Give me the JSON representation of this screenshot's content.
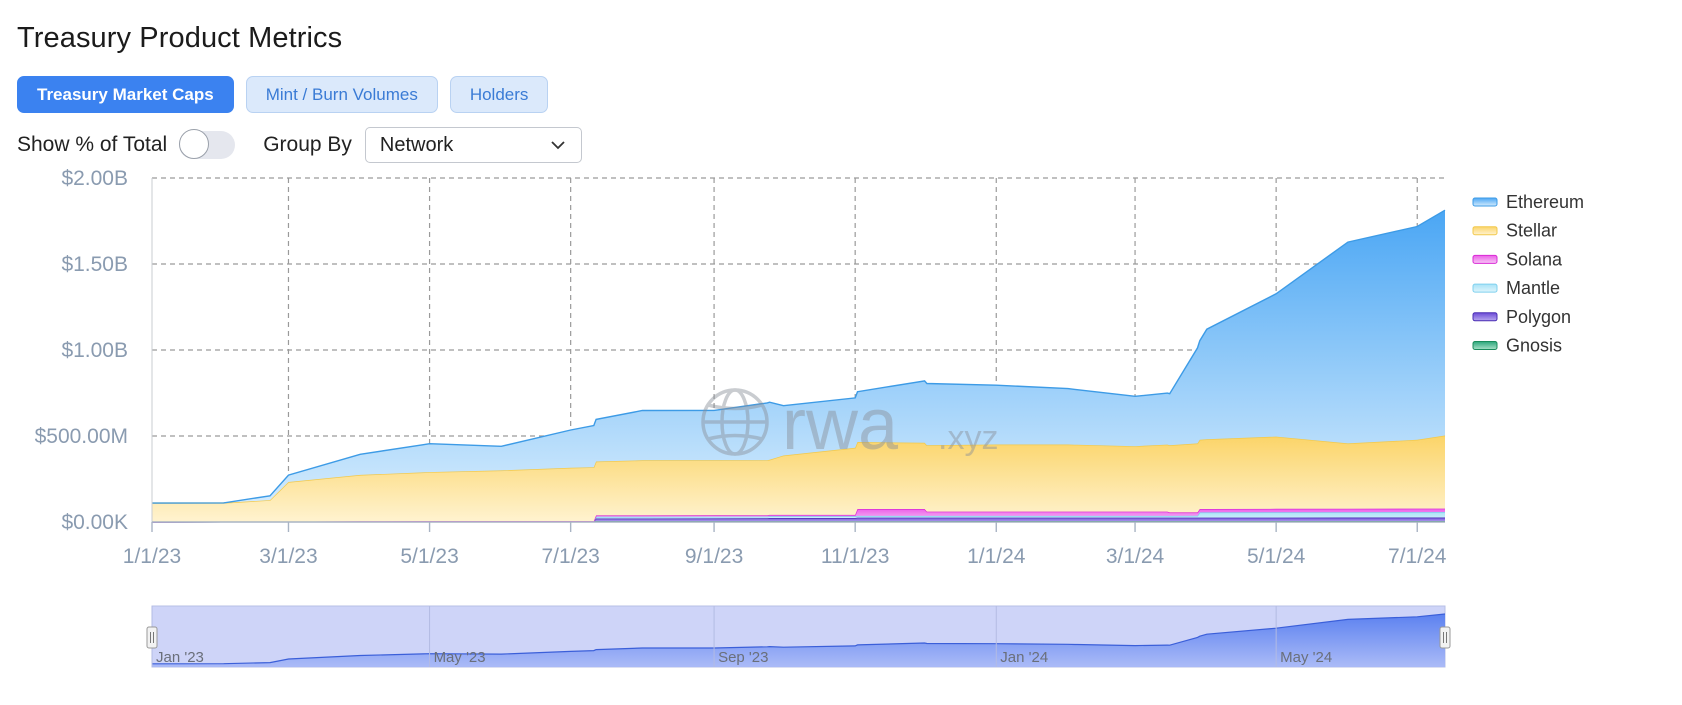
{
  "header": {
    "title": "Treasury Product Metrics"
  },
  "tabs": [
    {
      "label": "Treasury Market Caps",
      "active": true
    },
    {
      "label": "Mint / Burn Volumes",
      "active": false
    },
    {
      "label": "Holders",
      "active": false
    }
  ],
  "controls": {
    "show_pct_label": "Show % of Total",
    "show_pct_on": false,
    "group_by_label": "Group By",
    "group_by_value": "Network"
  },
  "icons": {
    "dropdown": "chevron-down-icon",
    "watermark": "globe-icon"
  },
  "watermark": {
    "main": "rwa",
    "suffix": ".xyz"
  },
  "colors": {
    "accent": "#3b82f0",
    "Ethereum": "#5aaaf0",
    "Stellar": "#fcd66a",
    "Solana": "#e236e0",
    "Mantle": "#9fdcf5",
    "Polygon": "#5b3fc7",
    "Gnosis": "#1f9a68"
  },
  "chart_data": {
    "type": "area",
    "stacked": true,
    "title": "",
    "xlabel": "",
    "ylabel": "",
    "x_ticks": [
      "1/1/23",
      "3/1/23",
      "5/1/23",
      "7/1/23",
      "9/1/23",
      "11/1/23",
      "1/1/24",
      "3/1/24",
      "5/1/24",
      "7/1/24"
    ],
    "y_ticks": [
      "$0.00K",
      "$500.00M",
      "$1.00B",
      "$1.50B",
      "$2.00B"
    ],
    "ylim": [
      0,
      2000
    ],
    "y_unit": "USD millions",
    "xlim": [
      "2023-01-01",
      "2024-07-13"
    ],
    "grid": true,
    "legend_position": "right",
    "legend": [
      "Ethereum",
      "Stellar",
      "Solana",
      "Mantle",
      "Polygon",
      "Gnosis"
    ],
    "series": [
      {
        "name": "Gnosis",
        "x": [
          "2023-01-01",
          "2023-04-28",
          "2024-07-13"
        ],
        "values": [
          0,
          5,
          6
        ]
      },
      {
        "name": "Polygon",
        "x": [
          "2023-01-01",
          "2023-07-11",
          "2023-07-12",
          "2023-09-24",
          "2023-09-25",
          "2023-11-01",
          "2023-11-02",
          "2024-07-13"
        ],
        "values": [
          0,
          0,
          15,
          16,
          18,
          18,
          20,
          20
        ]
      },
      {
        "name": "Mantle",
        "x": [
          "2023-01-01",
          "2023-07-11",
          "2023-07-12",
          "2024-03-28",
          "2024-03-29",
          "2024-07-13"
        ],
        "values": [
          0,
          0,
          10,
          10,
          30,
          32
        ]
      },
      {
        "name": "Solana",
        "x": [
          "2023-01-01",
          "2023-07-11",
          "2023-07-12",
          "2023-11-01",
          "2023-11-02",
          "2023-12-01",
          "2023-12-02",
          "2024-02-04",
          "2024-02-05",
          "2024-03-15",
          "2024-03-16",
          "2024-07-13"
        ],
        "values": [
          0,
          0,
          8,
          8,
          40,
          40,
          25,
          25,
          25,
          25,
          20,
          20
        ]
      },
      {
        "name": "Stellar",
        "x": [
          "2023-01-01",
          "2023-02-01",
          "2023-02-21",
          "2023-03-01",
          "2023-04-01",
          "2023-05-01",
          "2023-06-01",
          "2023-07-01",
          "2023-08-01",
          "2023-09-01",
          "2023-09-25",
          "2023-10-01",
          "2023-11-01",
          "2023-12-01",
          "2024-01-01",
          "2024-02-01",
          "2024-03-01",
          "2024-03-16",
          "2024-04-01",
          "2024-05-01",
          "2024-06-01",
          "2024-07-01",
          "2024-07-13"
        ],
        "values": [
          110,
          110,
          125,
          230,
          270,
          285,
          295,
          310,
          320,
          320,
          320,
          345,
          390,
          385,
          390,
          390,
          380,
          390,
          405,
          420,
          380,
          400,
          425
        ]
      },
      {
        "name": "Ethereum",
        "x": [
          "2023-01-01",
          "2023-02-01",
          "2023-02-21",
          "2023-03-01",
          "2023-04-01",
          "2023-05-01",
          "2023-06-01",
          "2023-07-01",
          "2023-08-01",
          "2023-09-01",
          "2023-09-25",
          "2023-10-01",
          "2023-11-01",
          "2023-12-01",
          "2024-01-01",
          "2024-02-01",
          "2024-03-01",
          "2024-03-16",
          "2024-04-01",
          "2024-05-01",
          "2024-06-01",
          "2024-07-01",
          "2024-07-13"
        ],
        "values": [
          0,
          0,
          25,
          40,
          120,
          165,
          140,
          220,
          290,
          290,
          335,
          290,
          290,
          360,
          345,
          325,
          290,
          300,
          640,
          830,
          1170,
          1240,
          1310
        ]
      }
    ]
  },
  "navigator": {
    "labels": [
      "Jan '23",
      "May '23",
      "Sep '23",
      "Jan '24",
      "May '24"
    ],
    "label_dates": [
      "2023-01-01",
      "2023-05-01",
      "2023-09-01",
      "2024-01-01",
      "2024-05-01"
    ]
  }
}
